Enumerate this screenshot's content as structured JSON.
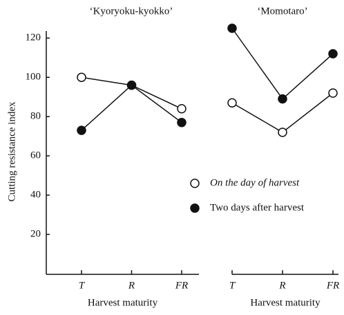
{
  "chart_data": [
    {
      "type": "line",
      "title": "‘Kyoryoku-kyokko’",
      "x_label": "Harvest maturity",
      "y_label": "Cutting resistance index",
      "categories": [
        "T",
        "R",
        "FR"
      ],
      "ylim": [
        0,
        125
      ],
      "yticks": [
        20,
        40,
        60,
        80,
        100,
        120
      ],
      "series": [
        {
          "marker": "open",
          "color": "#111111",
          "values": [
            100,
            96,
            84
          ]
        },
        {
          "marker": "filled",
          "color": "#111111",
          "values": [
            73,
            96,
            77
          ]
        }
      ]
    },
    {
      "type": "line",
      "title": "‘Momotaro’",
      "x_label": "Harvest maturity",
      "categories": [
        "T",
        "R",
        "FR"
      ],
      "ylim": [
        0,
        125
      ],
      "legend": "right",
      "series": [
        {
          "name": "On the day of harvest",
          "marker": "open",
          "color": "#111111",
          "values": [
            87,
            72,
            92
          ]
        },
        {
          "name": "Two days after harvest",
          "marker": "filled",
          "color": "#111111",
          "values": [
            125,
            89,
            112
          ]
        }
      ]
    }
  ]
}
